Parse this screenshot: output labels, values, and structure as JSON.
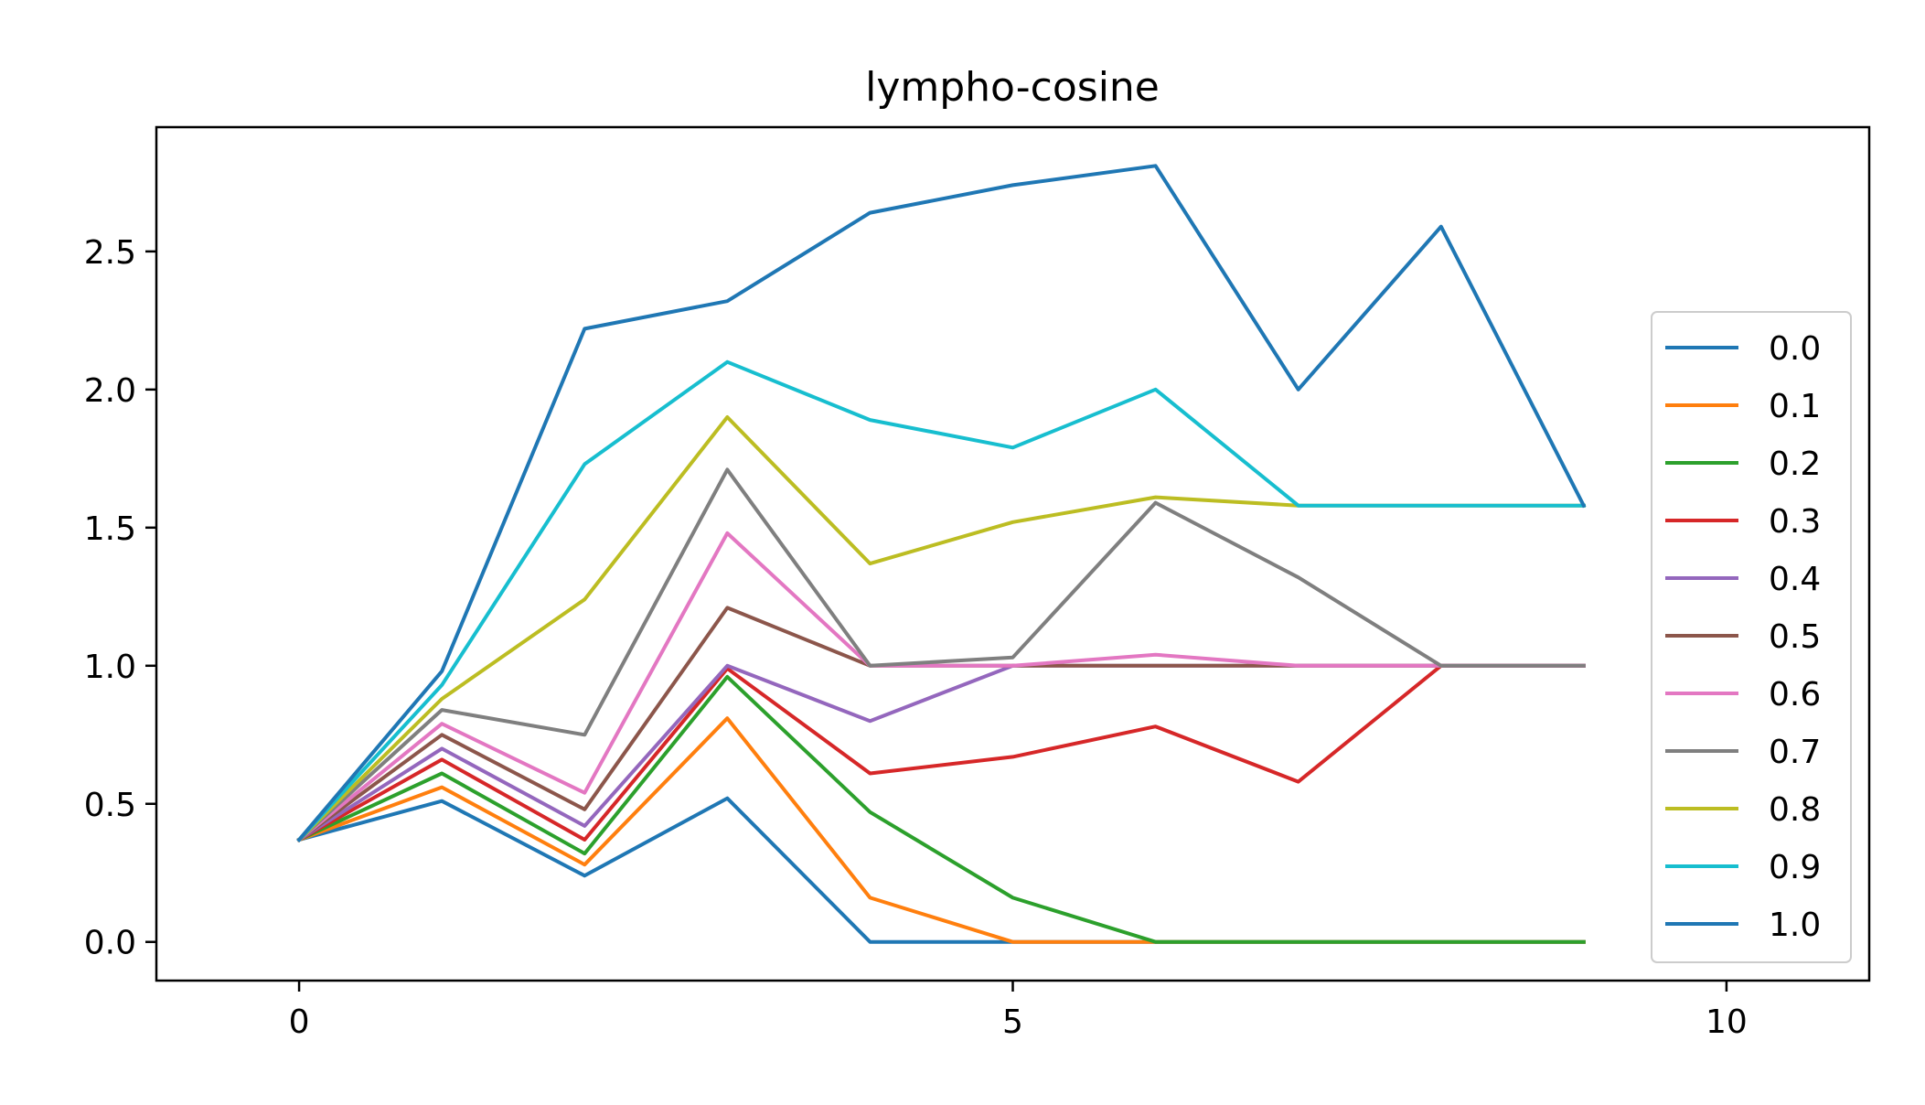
{
  "chart_data": {
    "type": "line",
    "title": "lympho-cosine",
    "xlabel": "",
    "ylabel": "",
    "xlim": [
      -1,
      11
    ],
    "ylim": [
      -0.14,
      2.95
    ],
    "xticks": [
      0,
      5,
      10
    ],
    "xtick_labels": [
      "0",
      "5",
      "10"
    ],
    "yticks": [
      0.0,
      0.5,
      1.0,
      1.5,
      2.0,
      2.5
    ],
    "ytick_labels": [
      "0.0",
      "0.5",
      "1.0",
      "1.5",
      "2.0",
      "2.5"
    ],
    "grid": false,
    "legend_position": "lower right",
    "x": [
      0,
      1,
      2,
      3,
      4,
      5,
      6,
      7,
      8,
      9
    ],
    "series": [
      {
        "name": "0.0",
        "color": "#1f77b4",
        "values": [
          0.37,
          0.51,
          0.24,
          0.52,
          0.0,
          0.0,
          0.0,
          0.0,
          0.0,
          0.0
        ]
      },
      {
        "name": "0.1",
        "color": "#ff7f0e",
        "values": [
          0.37,
          0.56,
          0.28,
          0.81,
          0.16,
          0.0,
          0.0,
          0.0,
          0.0,
          0.0
        ]
      },
      {
        "name": "0.2",
        "color": "#2ca02c",
        "values": [
          0.37,
          0.61,
          0.32,
          0.96,
          0.47,
          0.16,
          0.0,
          0.0,
          0.0,
          0.0
        ]
      },
      {
        "name": "0.3",
        "color": "#d62728",
        "values": [
          0.37,
          0.66,
          0.37,
          0.99,
          0.61,
          0.67,
          0.78,
          0.58,
          1.0,
          1.0
        ]
      },
      {
        "name": "0.4",
        "color": "#9467bd",
        "values": [
          0.37,
          0.7,
          0.42,
          1.0,
          0.8,
          1.0,
          1.0,
          1.0,
          1.0,
          1.0
        ]
      },
      {
        "name": "0.5",
        "color": "#8c564b",
        "values": [
          0.37,
          0.75,
          0.48,
          1.21,
          1.0,
          1.0,
          1.0,
          1.0,
          1.0,
          1.0
        ]
      },
      {
        "name": "0.6",
        "color": "#e377c2",
        "values": [
          0.37,
          0.79,
          0.54,
          1.48,
          1.0,
          1.0,
          1.04,
          1.0,
          1.0,
          1.0
        ]
      },
      {
        "name": "0.7",
        "color": "#7f7f7f",
        "values": [
          0.37,
          0.84,
          0.75,
          1.71,
          1.0,
          1.03,
          1.59,
          1.32,
          1.0,
          1.0
        ]
      },
      {
        "name": "0.8",
        "color": "#bcbd22",
        "values": [
          0.37,
          0.88,
          1.24,
          1.9,
          1.37,
          1.52,
          1.61,
          1.58,
          1.58,
          1.58
        ]
      },
      {
        "name": "0.9",
        "color": "#17becf",
        "values": [
          0.37,
          0.93,
          1.73,
          2.1,
          1.89,
          1.79,
          2.0,
          1.58,
          1.58,
          1.58
        ]
      },
      {
        "name": "1.0",
        "color": "#1f77b4",
        "values": [
          0.37,
          0.98,
          2.22,
          2.32,
          2.64,
          2.74,
          2.81,
          2.0,
          2.59,
          1.58
        ]
      }
    ]
  }
}
